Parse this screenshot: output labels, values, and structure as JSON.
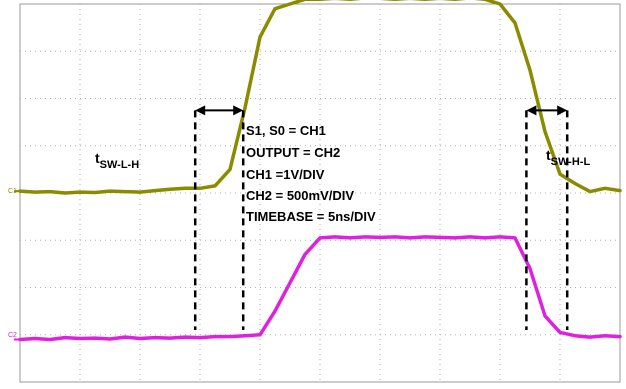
{
  "chart_data": {
    "type": "line",
    "grid": true,
    "x_divisions": 10,
    "y_divisions": 8,
    "x": [
      0,
      0.25,
      0.5,
      0.75,
      1,
      1.25,
      1.5,
      1.75,
      2,
      2.25,
      2.5,
      2.75,
      3,
      3.25,
      3.5,
      3.75,
      4,
      4.25,
      4.5,
      4.75,
      5,
      5.25,
      5.5,
      5.75,
      6,
      6.25,
      6.5,
      6.75,
      7,
      7.25,
      7.5,
      7.75,
      8,
      8.25,
      8.5,
      8.75,
      9,
      9.25,
      9.5,
      9.75,
      10
    ],
    "series": [
      {
        "name": "C1",
        "color": "#8b8b00",
        "values": [
          4.04,
          4.02,
          4.03,
          4.0,
          4.02,
          4.01,
          4.04,
          4.03,
          4.02,
          4.05,
          4.08,
          4.1,
          4.1,
          4.15,
          4.5,
          5.8,
          7.3,
          7.9,
          8.0,
          8.1,
          8.1,
          8.12,
          8.1,
          8.13,
          8.12,
          8.1,
          8.12,
          8.1,
          8.12,
          8.1,
          8.13,
          8.1,
          8.0,
          7.6,
          6.6,
          5.3,
          4.4,
          4.2,
          4.03,
          4.1,
          4.05
        ]
      },
      {
        "name": "C2",
        "color": "#e020e0",
        "values": [
          0.9,
          0.92,
          0.9,
          0.94,
          0.92,
          0.93,
          0.91,
          0.95,
          0.92,
          0.94,
          0.93,
          0.95,
          0.94,
          0.96,
          0.96,
          0.98,
          1.0,
          1.5,
          2.1,
          2.7,
          3.05,
          3.07,
          3.05,
          3.07,
          3.06,
          3.07,
          3.05,
          3.07,
          3.06,
          3.05,
          3.07,
          3.05,
          3.07,
          3.05,
          2.4,
          1.4,
          1.05,
          0.98,
          0.95,
          0.98,
          0.96
        ]
      }
    ],
    "markers": [
      {
        "x": 2.92,
        "y_top": 5.75,
        "y_bottom": 1.1
      },
      {
        "x": 3.72,
        "y_top": 5.75,
        "y_bottom": 1.1
      },
      {
        "x": 8.44,
        "y_top": 5.75,
        "y_bottom": 1.1
      },
      {
        "x": 9.12,
        "y_top": 5.75,
        "y_bottom": 1.1
      }
    ],
    "arrows": [
      {
        "x1": 2.92,
        "x2": 3.72,
        "y": 5.75
      },
      {
        "x1": 8.44,
        "x2": 9.12,
        "y": 5.75
      }
    ]
  },
  "channel_labels": {
    "ch1": "C1",
    "ch2": "C2"
  },
  "annotations": {
    "t_low_high": {
      "main": "t",
      "sub": "SW-L-H"
    },
    "t_high_low": {
      "main": "t",
      "sub": "SW-H-L"
    },
    "info_lines": [
      "S1, S0 = CH1",
      "OUTPUT = CH2",
      "CH1 =1V/DIV",
      "CH2 = 500mV/DIV",
      "TIMEBASE = 5ns/DIV"
    ]
  }
}
